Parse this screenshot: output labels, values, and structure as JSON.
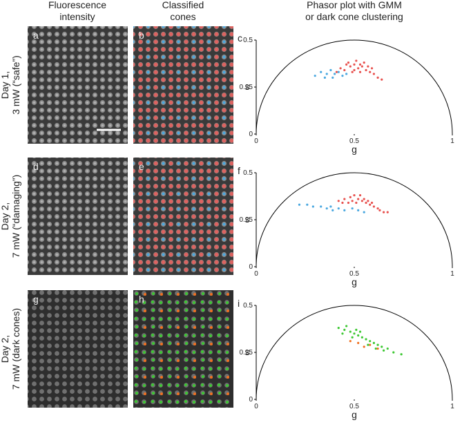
{
  "headers": [
    [
      "Fluorescence",
      "intensity"
    ],
    [
      "Classified",
      "cones"
    ],
    [
      "Phasor plot with GMM",
      "or dark cone clustering"
    ]
  ],
  "rows": [
    {
      "label": [
        "Day 1,",
        "3 mW (“safe”)"
      ],
      "panels": [
        "a",
        "b"
      ]
    },
    {
      "label": [
        "Day 2,",
        "7 mW (“damaging”)"
      ],
      "panels": [
        "d",
        "e"
      ]
    },
    {
      "label": [
        "Day 2,",
        "7 mW (dark cones)"
      ],
      "panels": [
        "g",
        "h"
      ]
    }
  ],
  "chart_data": [
    {
      "type": "scatter",
      "panel": "c",
      "xlabel": "g",
      "ylabel": "s",
      "xlim": [
        0,
        1
      ],
      "ylim": [
        0,
        0.5
      ],
      "xticks": [
        0,
        0.5,
        1
      ],
      "yticks": [
        0,
        0.25,
        0.5
      ],
      "series": [
        {
          "color": "#e8524f",
          "x": [
            0.45,
            0.48,
            0.5,
            0.52,
            0.54,
            0.56,
            0.58,
            0.6,
            0.62,
            0.47,
            0.51,
            0.53,
            0.55,
            0.49,
            0.57,
            0.43,
            0.46,
            0.59,
            0.64,
            0.5,
            0.53,
            0.41
          ],
          "y": [
            0.34,
            0.36,
            0.37,
            0.35,
            0.36,
            0.34,
            0.33,
            0.32,
            0.3,
            0.38,
            0.39,
            0.33,
            0.38,
            0.33,
            0.36,
            0.35,
            0.37,
            0.35,
            0.29,
            0.34,
            0.37,
            0.33
          ]
        },
        {
          "color": "#4aa8e0",
          "x": [
            0.3,
            0.33,
            0.36,
            0.38,
            0.4,
            0.42,
            0.44,
            0.35,
            0.46,
            0.39
          ],
          "y": [
            0.31,
            0.33,
            0.32,
            0.34,
            0.32,
            0.33,
            0.31,
            0.3,
            0.32,
            0.3
          ]
        }
      ]
    },
    {
      "type": "scatter",
      "panel": "f",
      "xlabel": "g",
      "ylabel": "s",
      "xlim": [
        0,
        1
      ],
      "ylim": [
        0,
        0.5
      ],
      "xticks": [
        0,
        0.5,
        1
      ],
      "yticks": [
        0,
        0.25,
        0.5
      ],
      "series": [
        {
          "color": "#e8524f",
          "x": [
            0.42,
            0.45,
            0.48,
            0.5,
            0.52,
            0.54,
            0.56,
            0.58,
            0.6,
            0.62,
            0.65,
            0.47,
            0.51,
            0.53,
            0.55,
            0.49,
            0.57,
            0.44,
            0.63,
            0.59,
            0.67
          ],
          "y": [
            0.35,
            0.36,
            0.37,
            0.38,
            0.36,
            0.35,
            0.34,
            0.33,
            0.32,
            0.31,
            0.29,
            0.34,
            0.34,
            0.38,
            0.36,
            0.35,
            0.35,
            0.34,
            0.3,
            0.34,
            0.29
          ]
        },
        {
          "color": "#4aa8e0",
          "x": [
            0.22,
            0.26,
            0.29,
            0.33,
            0.36,
            0.39,
            0.42,
            0.45,
            0.49,
            0.52,
            0.55,
            0.38
          ],
          "y": [
            0.33,
            0.33,
            0.32,
            0.32,
            0.31,
            0.3,
            0.31,
            0.3,
            0.31,
            0.3,
            0.29,
            0.32
          ]
        }
      ]
    },
    {
      "type": "scatter",
      "panel": "i",
      "xlabel": "g",
      "ylabel": "s",
      "xlim": [
        0,
        1
      ],
      "ylim": [
        0,
        0.5
      ],
      "xticks": [
        0,
        0.5,
        1
      ],
      "yticks": [
        0,
        0.25,
        0.5
      ],
      "series": [
        {
          "color": "#3cc832",
          "x": [
            0.42,
            0.45,
            0.48,
            0.5,
            0.52,
            0.54,
            0.56,
            0.58,
            0.6,
            0.62,
            0.64,
            0.67,
            0.7,
            0.74,
            0.46,
            0.49,
            0.53,
            0.57,
            0.61,
            0.44,
            0.51,
            0.65
          ],
          "y": [
            0.38,
            0.37,
            0.36,
            0.35,
            0.34,
            0.33,
            0.32,
            0.31,
            0.3,
            0.29,
            0.28,
            0.27,
            0.25,
            0.24,
            0.39,
            0.33,
            0.36,
            0.29,
            0.27,
            0.35,
            0.37,
            0.26
          ]
        },
        {
          "color": "#f07020",
          "x": [
            0.52,
            0.55,
            0.58,
            0.62,
            0.48
          ],
          "y": [
            0.3,
            0.28,
            0.29,
            0.27,
            0.31
          ]
        }
      ]
    }
  ]
}
